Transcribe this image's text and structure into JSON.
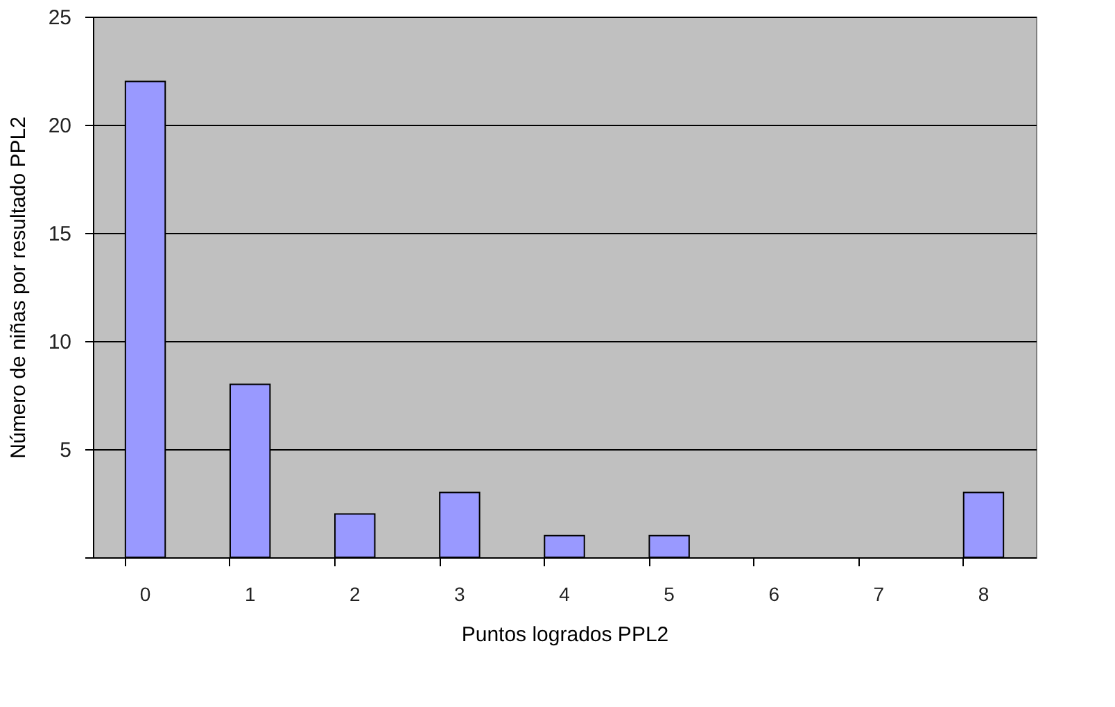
{
  "chart_data": {
    "type": "bar",
    "xlabel": "Puntos logrados PPL2",
    "ylabel": "Número de niñas por resultado PPL2",
    "categories": [
      "0",
      "1",
      "2",
      "3",
      "4",
      "5",
      "6",
      "7",
      "8"
    ],
    "values": [
      22,
      8,
      2,
      3,
      1,
      1,
      0,
      0,
      3
    ],
    "color": "#9999ff",
    "ylim": [
      0,
      25
    ],
    "yticks": [
      {
        "value": 0,
        "label": null
      },
      5,
      10,
      15,
      20,
      25
    ],
    "grid": "y"
  }
}
